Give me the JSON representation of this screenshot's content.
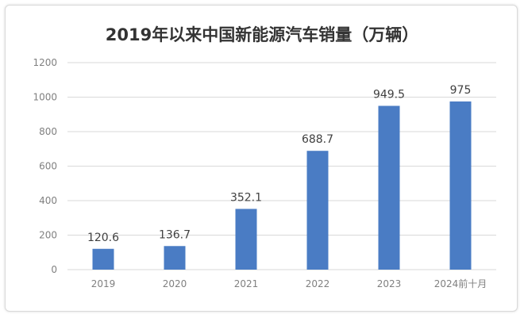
{
  "chart_data": {
    "type": "bar",
    "title": "2019年以来中国新能源汽车销量（万辆）",
    "categories": [
      "2019",
      "2020",
      "2021",
      "2022",
      "2023",
      "2024前十月"
    ],
    "values": [
      120.6,
      136.7,
      352.1,
      688.7,
      949.5,
      975
    ],
    "value_labels": [
      "120.6",
      "136.7",
      "352.1",
      "688.7",
      "949.5",
      "975"
    ],
    "y_ticks": [
      "0",
      "200",
      "400",
      "600",
      "800",
      "1000",
      "1200"
    ],
    "ylim": [
      0,
      1200
    ],
    "grid": true,
    "legend": "none",
    "colors": {
      "bar": "#4a7cc4",
      "grid": "#d9d9d9"
    }
  }
}
